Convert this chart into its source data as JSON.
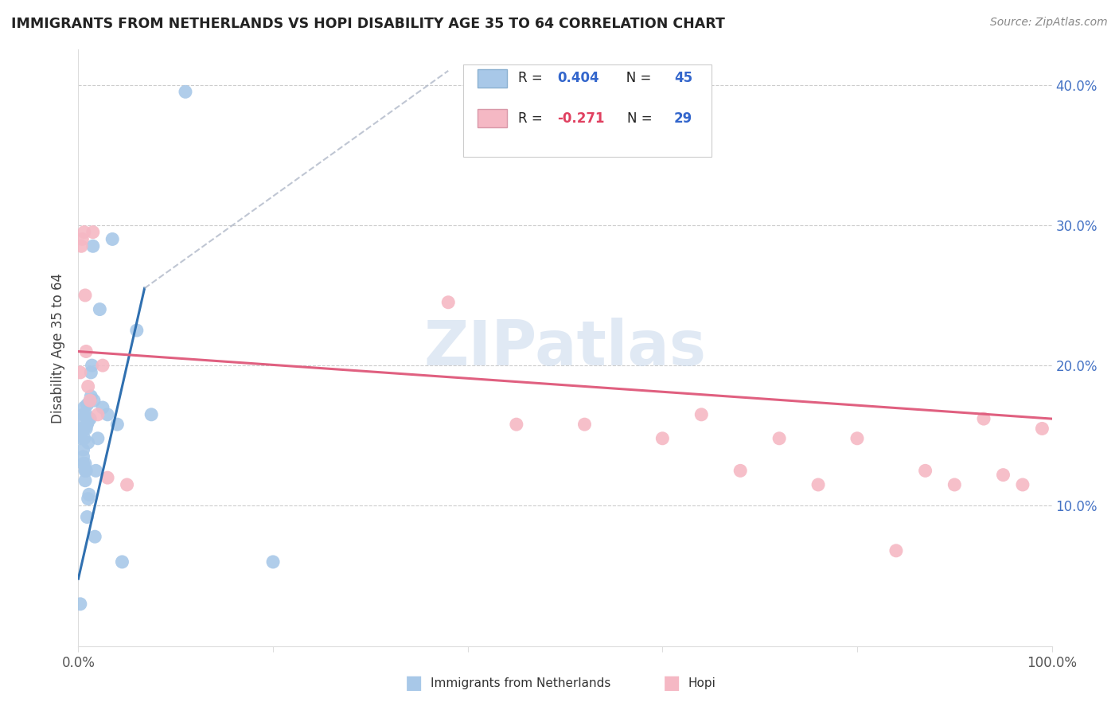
{
  "title": "IMMIGRANTS FROM NETHERLANDS VS HOPI DISABILITY AGE 35 TO 64 CORRELATION CHART",
  "source": "Source: ZipAtlas.com",
  "ylabel": "Disability Age 35 to 64",
  "xlim": [
    0,
    1.0
  ],
  "ylim": [
    0,
    0.425
  ],
  "blue_color": "#a8c8e8",
  "pink_color": "#f5b8c4",
  "blue_line_color": "#3070b0",
  "pink_line_color": "#e06080",
  "blue_r": "0.404",
  "blue_n": "45",
  "pink_r": "-0.271",
  "pink_n": "29",
  "watermark": "ZIPatlas",
  "blue_points_x": [
    0.002,
    0.003,
    0.003,
    0.004,
    0.004,
    0.005,
    0.005,
    0.005,
    0.005,
    0.006,
    0.006,
    0.006,
    0.007,
    0.007,
    0.007,
    0.008,
    0.008,
    0.008,
    0.009,
    0.009,
    0.009,
    0.01,
    0.01,
    0.01,
    0.011,
    0.012,
    0.012,
    0.013,
    0.013,
    0.014,
    0.015,
    0.016,
    0.017,
    0.018,
    0.02,
    0.022,
    0.025,
    0.03,
    0.035,
    0.04,
    0.045,
    0.06,
    0.075,
    0.11,
    0.2
  ],
  "blue_points_y": [
    0.03,
    0.148,
    0.155,
    0.155,
    0.162,
    0.13,
    0.135,
    0.14,
    0.165,
    0.148,
    0.155,
    0.17,
    0.118,
    0.125,
    0.13,
    0.125,
    0.155,
    0.165,
    0.092,
    0.158,
    0.172,
    0.105,
    0.145,
    0.16,
    0.108,
    0.162,
    0.175,
    0.178,
    0.195,
    0.2,
    0.285,
    0.175,
    0.078,
    0.125,
    0.148,
    0.24,
    0.17,
    0.165,
    0.29,
    0.158,
    0.06,
    0.225,
    0.165,
    0.395,
    0.06
  ],
  "pink_points_x": [
    0.002,
    0.003,
    0.004,
    0.006,
    0.007,
    0.008,
    0.01,
    0.012,
    0.015,
    0.02,
    0.025,
    0.03,
    0.05,
    0.38,
    0.45,
    0.52,
    0.6,
    0.64,
    0.68,
    0.72,
    0.76,
    0.8,
    0.84,
    0.87,
    0.9,
    0.93,
    0.95,
    0.97,
    0.99
  ],
  "pink_points_y": [
    0.195,
    0.285,
    0.29,
    0.295,
    0.25,
    0.21,
    0.185,
    0.175,
    0.295,
    0.165,
    0.2,
    0.12,
    0.115,
    0.245,
    0.158,
    0.158,
    0.148,
    0.165,
    0.125,
    0.148,
    0.115,
    0.148,
    0.068,
    0.125,
    0.115,
    0.162,
    0.122,
    0.115,
    0.155
  ],
  "blue_trendline_x": [
    0.0,
    0.068
  ],
  "blue_trendline_y": [
    0.048,
    0.255
  ],
  "dashed_line_x": [
    0.068,
    0.38
  ],
  "dashed_line_y": [
    0.255,
    0.41
  ],
  "pink_trendline_x": [
    0.0,
    1.0
  ],
  "pink_trendline_y": [
    0.21,
    0.162
  ]
}
